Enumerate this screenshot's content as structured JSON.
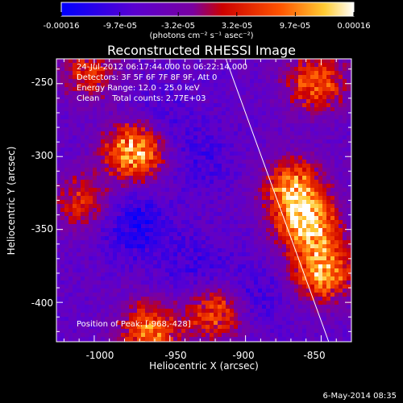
{
  "chart_data": {
    "type": "heatmap",
    "title": "Reconstructed RHESSI Image",
    "xlabel": "Heliocentric X (arcsec)",
    "ylabel": "Heliocentric Y (arcsec)",
    "xlim": [
      -1025,
      -830
    ],
    "ylim": [
      -427,
      -233
    ],
    "xticks": [
      "-1000",
      "-950",
      "-900",
      "-850"
    ],
    "yticks": [
      "-250",
      "-300",
      "-350",
      "-400"
    ],
    "colorbar": {
      "min": -0.00016,
      "max": 0.00016,
      "tick_labels": [
        "-0.00016",
        "-9.7e-05",
        "-3.2e-05",
        "3.2e-05",
        "9.7e-05",
        "0.00016"
      ],
      "units": "(photons cm⁻² s⁻¹ asec⁻²)",
      "colormap": [
        "#0000ff",
        "#5a00d0",
        "#7a00a0",
        "#cc0000",
        "#ff5500",
        "#ffcc33",
        "#ffffff"
      ]
    },
    "annotations": [
      "24-Jul-2012 06:17:44.000 to 06:22:14.000",
      "Detectors: 3F 5F 6F 7F 8F 9F, Att 0",
      "Energy Range: 12.0 - 25.0 keV",
      "Clean     Total counts: 2.77E+03"
    ],
    "peak_label": "Position of Peak: [-968,-428]",
    "limb_line": {
      "x": [
        -913,
        -845
      ],
      "y": [
        -233,
        -427
      ]
    },
    "hot_regions": [
      {
        "x": -975,
        "y": -295,
        "strength": 1.0
      },
      {
        "x": -860,
        "y": -345,
        "strength": 1.0
      },
      {
        "x": -850,
        "y": -378,
        "strength": 0.9
      },
      {
        "x": -870,
        "y": -320,
        "strength": 0.8
      },
      {
        "x": -855,
        "y": -248,
        "strength": 0.7
      },
      {
        "x": -965,
        "y": -418,
        "strength": 0.8
      },
      {
        "x": -920,
        "y": -405,
        "strength": 0.7
      },
      {
        "x": -1010,
        "y": -330,
        "strength": 0.5
      },
      {
        "x": -1005,
        "y": -240,
        "strength": 0.5
      }
    ],
    "cold_regions": [
      {
        "x": -975,
        "y": -345,
        "strength": 1.0
      },
      {
        "x": -935,
        "y": -375,
        "strength": 0.6
      },
      {
        "x": -900,
        "y": -395,
        "strength": 0.7
      },
      {
        "x": -960,
        "y": -275,
        "strength": 0.5
      },
      {
        "x": -930,
        "y": -300,
        "strength": 0.5
      }
    ]
  },
  "footer": "6-May-2014 08:35"
}
